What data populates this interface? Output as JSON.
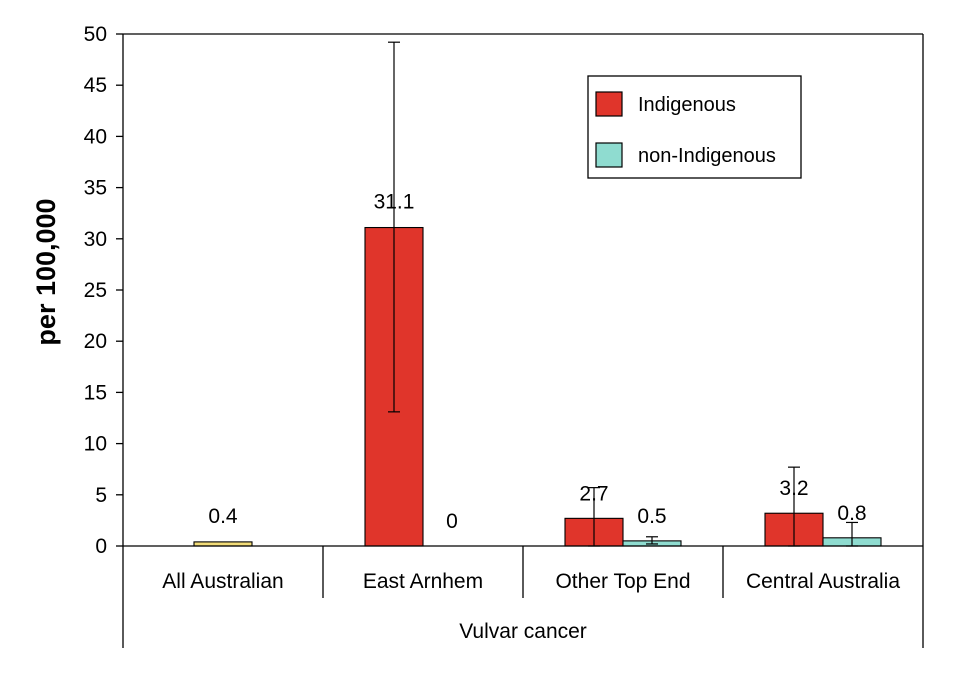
{
  "chart_data": {
    "type": "bar",
    "ylabel": "per 100,000",
    "xlabel": "Vulvar cancer",
    "ylim": [
      0,
      50
    ],
    "yticks": [
      0,
      5,
      10,
      15,
      20,
      25,
      30,
      35,
      40,
      45,
      50
    ],
    "categories": [
      "All Australian",
      "East Arnhem",
      "Other Top End",
      "Central Australia"
    ],
    "series": [
      {
        "name": "Indigenous",
        "color": "#e0352b",
        "values": [
          0.4,
          31.1,
          2.7,
          3.2
        ],
        "labels": [
          "0.4",
          "31.1",
          "2.7",
          "3.2"
        ],
        "error_low": [
          null,
          13.1,
          0,
          0
        ],
        "error_high": [
          null,
          49.2,
          5.7,
          7.7
        ]
      },
      {
        "name": "non-Indigenous",
        "color": "#8fdcd0",
        "values": [
          null,
          0,
          0.5,
          0.8
        ],
        "labels": [
          null,
          "0",
          "0.5",
          "0.8"
        ],
        "error_low": [
          null,
          null,
          0.2,
          0
        ],
        "error_high": [
          null,
          null,
          0.9,
          2.3
        ]
      }
    ],
    "all_australian_color": "#f2dc78",
    "legend_position": "top-right",
    "grid": false
  }
}
